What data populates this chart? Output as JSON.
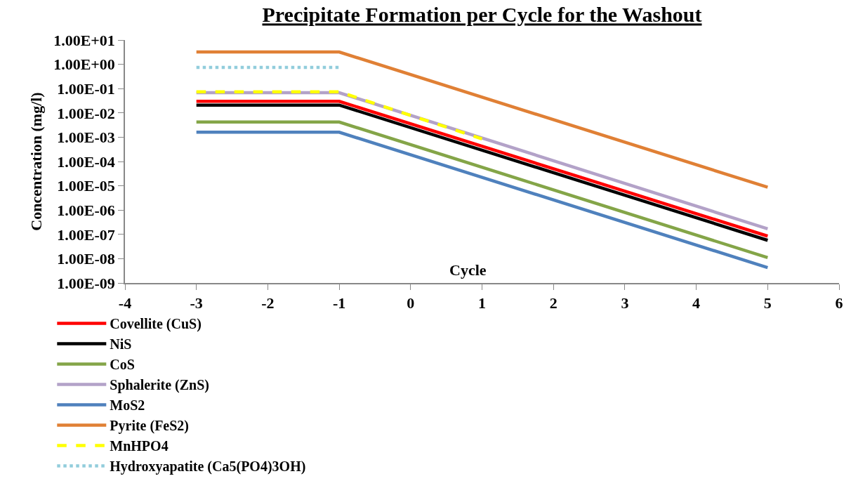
{
  "chart_data": {
    "type": "line",
    "title": "Precipitate Formation per Cycle for the Washout",
    "xlabel": "Cycle",
    "ylabel": "Concentration (mg/l)",
    "log": "y",
    "grid": false,
    "legend": "bottom",
    "marker": "none",
    "xlim": [
      -4,
      6
    ],
    "xticks": [
      -4,
      -3,
      -2,
      -1,
      0,
      1,
      2,
      3,
      4,
      5,
      6
    ],
    "ylim": [
      1e-09,
      10
    ],
    "yticks": [
      {
        "value": 10,
        "label": "1.00E+01"
      },
      {
        "value": 1,
        "label": "1.00E+00"
      },
      {
        "value": 0.1,
        "label": "1.00E-01"
      },
      {
        "value": 0.01,
        "label": "1.00E-02"
      },
      {
        "value": 0.001,
        "label": "1.00E-03"
      },
      {
        "value": 0.0001,
        "label": "1.00E-04"
      },
      {
        "value": 1e-05,
        "label": "1.00E-05"
      },
      {
        "value": 1e-06,
        "label": "1.00E-06"
      },
      {
        "value": 1e-07,
        "label": "1.00E-07"
      },
      {
        "value": 1e-08,
        "label": "1.00E-08"
      },
      {
        "value": 1e-09,
        "label": "1.00E-09"
      }
    ],
    "series": [
      {
        "name": "Covellite (CuS)",
        "color": "#ff0000",
        "line_style": "solid",
        "x": [
          -3,
          -1,
          5
        ],
        "values": [
          0.03,
          0.03,
          8.5e-08
        ]
      },
      {
        "name": "NiS",
        "color": "#000000",
        "line_style": "solid",
        "x": [
          -3,
          -1,
          5
        ],
        "values": [
          0.021,
          0.021,
          5.7e-08
        ]
      },
      {
        "name": "CoS",
        "color": "#84a548",
        "line_style": "solid",
        "x": [
          -3,
          -1,
          5
        ],
        "values": [
          0.0042,
          0.0042,
          1.1e-08
        ]
      },
      {
        "name": "Sphalerite (ZnS)",
        "color": "#b3a2c8",
        "line_style": "solid",
        "x": [
          -3,
          -1,
          5
        ],
        "values": [
          0.068,
          0.068,
          1.7e-07
        ]
      },
      {
        "name": "MoS2",
        "color": "#4f81bd",
        "line_style": "solid",
        "x": [
          -3,
          -1,
          5
        ],
        "values": [
          0.0016,
          0.0016,
          4.3e-09
        ]
      },
      {
        "name": "Pyrite (FeS2)",
        "color": "#e08035",
        "line_style": "solid",
        "x": [
          -3,
          -1,
          5
        ],
        "values": [
          3.2,
          3.2,
          8.7e-06
        ]
      },
      {
        "name": "MnHPO4",
        "color": "#ffff00",
        "line_style": "dashed",
        "x": [
          -3,
          -1,
          1
        ],
        "values": [
          0.074,
          0.074,
          0.00085
        ]
      },
      {
        "name": "Hydroxyapatite (Ca5(PO4)3OH)",
        "color": "#92cddc",
        "line_style": "dotted",
        "x": [
          -3,
          -1
        ],
        "values": [
          0.74,
          0.74
        ]
      }
    ]
  }
}
